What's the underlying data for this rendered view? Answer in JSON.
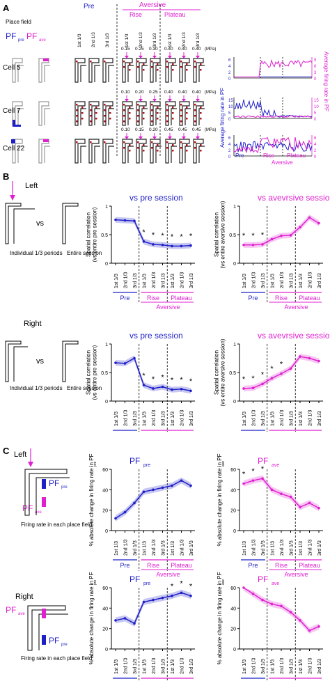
{
  "colors": {
    "blue": "#1f1fc8",
    "magenta": "#e020d0",
    "red_dot": "#b5121b"
  },
  "panel_a": {
    "letter": "A",
    "place_field_label": "Place field",
    "pf_pre": "PF",
    "pf_pre_sub": "pre",
    "pf_ave": "PF",
    "pf_ave_sub": "ave",
    "pre": "Pre",
    "aversive": "Aversive",
    "rise": "Rise",
    "plateau": "Plateau",
    "periods": [
      "1st 1/3",
      "2nd 1/3",
      "3rd 1/3",
      "1st 1/3",
      "2nd 1/3",
      "3rd 1/3",
      "1st 1/3",
      "2nd 1/3",
      "3rd 1/3"
    ],
    "cells": [
      "Cell 5",
      "Cell 7",
      "Cell 22"
    ],
    "pressures": [
      [
        "0.15",
        "0.25",
        "0.30",
        "0.40",
        "0.40",
        "0.40"
      ],
      [
        "0.10",
        "0.20",
        "0.25",
        "0.40",
        "0.40",
        "0.40"
      ],
      [
        "0.10",
        "0.15",
        "0.20",
        "0.45",
        "0.45",
        "0.45"
      ]
    ],
    "mpa": "(MPa)",
    "y_left_label": "Average firing rate in PF",
    "y_left_sub": "pre",
    "y_left_unit": "(Hz)",
    "y_right_label": "Average firing rate in PF",
    "y_right_sub": "ave",
    "y_right_unit": "(Hz)",
    "trace_ticks": [
      {
        "left": [
          "0",
          "2",
          "4",
          "6"
        ],
        "right": [
          "0",
          "3",
          "6",
          "9"
        ]
      },
      {
        "left": [
          "0",
          "5",
          "10",
          "15"
        ],
        "right": [
          "0",
          "5",
          "10",
          "15"
        ]
      },
      {
        "left": [
          "0",
          "2",
          "4",
          "6"
        ],
        "right": [
          "0",
          "2",
          "4",
          "6"
        ]
      }
    ],
    "x_groups": [
      "Pre",
      "Rise",
      "Plateau",
      "Aversive"
    ]
  },
  "panel_b": {
    "letter": "B",
    "left": "Left",
    "right": "Right",
    "vs": "vs",
    "individual": "Individual\n1/3 periods",
    "entire": "Entire\nsession",
    "title_pre": "vs pre session",
    "title_ave": "vs avevrsive session",
    "ylabel_pre": "Spatial correlation\n(vs entire pre session)",
    "ylabel_ave": "Spatial correlation\n(vs entire aversive session)",
    "yticks": [
      "0",
      "0.5",
      "1"
    ]
  },
  "panel_c": {
    "letter": "C",
    "left": "Left",
    "right": "Right",
    "firing_rate_label": "Firing rate\nin each place field",
    "title_pre": "PF",
    "title_pre_sub": "pre",
    "title_ave": "PF",
    "title_ave_sub": "ave",
    "ylabel": "% absolute change in firing rate in PF",
    "ylabel_sub_pre": "pre",
    "ylabel_sub_ave": "ave",
    "yticks": [
      "0",
      "20",
      "40",
      "60"
    ]
  },
  "chart_data": [
    {
      "type": "line",
      "title": "vs pre session",
      "panel": "B-Left",
      "categories": [
        "1st 1/3",
        "2nd 1/3",
        "3rd 1/3",
        "1st 1/3",
        "2nd 1/3",
        "3rd 1/3",
        "1st 1/3",
        "2nd 1/3",
        "3rd 1/3"
      ],
      "values": [
        0.76,
        0.75,
        0.74,
        0.38,
        0.33,
        0.32,
        0.3,
        0.3,
        0.31
      ],
      "ylim": [
        0,
        1
      ],
      "stars": [
        false,
        false,
        false,
        true,
        true,
        true,
        true,
        true,
        true
      ],
      "color": "#1f1fc8"
    },
    {
      "type": "line",
      "title": "vs avevrsive session",
      "panel": "B-Left",
      "categories": [
        "1st 1/3",
        "2nd 1/3",
        "3rd 1/3",
        "1st 1/3",
        "2nd 1/3",
        "3rd 1/3",
        "1st 1/3",
        "2nd 1/3",
        "3rd 1/3"
      ],
      "values": [
        0.32,
        0.32,
        0.33,
        0.42,
        0.48,
        0.49,
        0.63,
        0.8,
        0.7
      ],
      "ylim": [
        0,
        1
      ],
      "stars": [
        true,
        true,
        true,
        false,
        false,
        false,
        false,
        false,
        false
      ],
      "color": "#e020d0"
    },
    {
      "type": "line",
      "title": "vs pre session",
      "panel": "B-Right",
      "categories": [
        "1st 1/3",
        "2nd 1/3",
        "3rd 1/3",
        "1st 1/3",
        "2nd 1/3",
        "3rd 1/3",
        "1st 1/3",
        "2nd 1/3",
        "3rd 1/3"
      ],
      "values": [
        0.67,
        0.66,
        0.75,
        0.28,
        0.22,
        0.25,
        0.2,
        0.21,
        0.18
      ],
      "ylim": [
        0,
        1
      ],
      "stars": [
        false,
        false,
        false,
        true,
        true,
        true,
        true,
        true,
        true
      ],
      "color": "#1f1fc8"
    },
    {
      "type": "line",
      "title": "vs avevrsive session",
      "panel": "B-Right",
      "categories": [
        "1st 1/3",
        "2nd 1/3",
        "3rd 1/3",
        "1st 1/3",
        "2nd 1/3",
        "3rd 1/3",
        "1st 1/3",
        "2nd 1/3",
        "3rd 1/3"
      ],
      "values": [
        0.22,
        0.23,
        0.3,
        0.4,
        0.48,
        0.57,
        0.78,
        0.75,
        0.7
      ],
      "ylim": [
        0,
        1
      ],
      "stars": [
        true,
        true,
        true,
        true,
        true,
        false,
        false,
        false,
        false
      ],
      "color": "#e020d0"
    },
    {
      "type": "line",
      "title": "PF pre",
      "panel": "C-Left",
      "categories": [
        "1st 1/3",
        "2nd 1/3",
        "3rd 1/3",
        "1st 1/3",
        "2nd 1/3",
        "3rd 1/3",
        "1st 1/3",
        "2nd 1/3",
        "3rd 1/3"
      ],
      "values": [
        12,
        18,
        27,
        38,
        40,
        42,
        44,
        49,
        44
      ],
      "ylim": [
        0,
        60
      ],
      "stars": [
        false,
        false,
        false,
        false,
        false,
        false,
        false,
        false,
        false
      ],
      "color": "#1f1fc8"
    },
    {
      "type": "line",
      "title": "PF ave",
      "panel": "C-Left",
      "categories": [
        "1st 1/3",
        "2nd 1/3",
        "3rd 1/3",
        "1st 1/3",
        "2nd 1/3",
        "3rd 1/3",
        "1st 1/3",
        "2nd 1/3",
        "3rd 1/3"
      ],
      "values": [
        46,
        49,
        51,
        40,
        36,
        33,
        23,
        27,
        22
      ],
      "ylim": [
        0,
        60
      ],
      "stars": [
        true,
        true,
        true,
        false,
        false,
        false,
        false,
        false,
        false
      ],
      "color": "#e020d0"
    },
    {
      "type": "line",
      "title": "PF pre",
      "panel": "C-Right",
      "categories": [
        "1st 1/3",
        "2nd 1/3",
        "3rd 1/3",
        "1st 1/3",
        "2nd 1/3",
        "3rd 1/3",
        "1st 1/3",
        "2nd 1/3",
        "3rd 1/3"
      ],
      "values": [
        28,
        30,
        25,
        46,
        48,
        50,
        52,
        55,
        52
      ],
      "ylim": [
        0,
        60
      ],
      "stars": [
        false,
        false,
        false,
        false,
        false,
        false,
        true,
        true,
        true
      ],
      "color": "#1f1fc8"
    },
    {
      "type": "line",
      "title": "PF ave",
      "panel": "C-Right",
      "categories": [
        "1st 1/3",
        "2nd 1/3",
        "3rd 1/3",
        "1st 1/3",
        "2nd 1/3",
        "3rd 1/3",
        "1st 1/3",
        "2nd 1/3",
        "3rd 1/3"
      ],
      "values": [
        60,
        54,
        48,
        44,
        42,
        36,
        28,
        18,
        22
      ],
      "ylim": [
        0,
        60
      ],
      "stars": [
        false,
        false,
        false,
        false,
        false,
        false,
        false,
        false,
        false
      ],
      "color": "#e020d0"
    }
  ]
}
